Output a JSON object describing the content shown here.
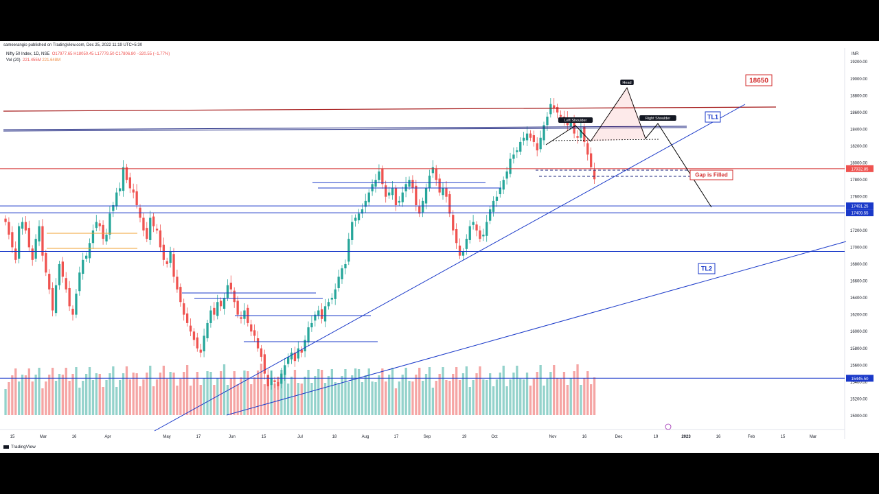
{
  "header": {
    "published": "sameerangio published on TradingView.com, Dec 25, 2022 11:19 UTC+5:30",
    "symbol": "Nifty 50 Index, 1D, NSE",
    "ohlc": {
      "o": "O17977.65",
      "h": "H18050.45",
      "l": "L17779.50",
      "c": "C17806.80",
      "chg": "−320.55 (−1.77%)"
    },
    "volume_label": "Vol (20)",
    "volume_value": "221.455M",
    "volume_ma": "221.648M",
    "currency": "INR"
  },
  "footer": {
    "brand": "TradingView"
  },
  "colors": {
    "up": "#26a69a",
    "down": "#ef5350",
    "up_vol": "#93d2cb",
    "down_vol": "#f5a5a4",
    "blue_line": "#1a39c9",
    "red_line": "#d32f2f",
    "dark_red_line": "#a31515"
  },
  "chart_data": {
    "type": "candlestick",
    "series": [
      {
        "name": "Nifty 50 Index, 1D, NSE"
      }
    ],
    "y_axis": {
      "ticks": [
        15000,
        15200,
        15400,
        15600,
        15800,
        16000,
        16200,
        16400,
        16600,
        16800,
        17000,
        17200,
        17400,
        17600,
        17800,
        18000,
        18200,
        18400,
        18600,
        18800,
        19000,
        19200
      ],
      "range": [
        14900,
        19250
      ]
    },
    "x_axis": {
      "ticks": [
        "15",
        "Mar",
        "16",
        "Apr",
        "May",
        "17",
        "Jun",
        "15",
        "Jul",
        "18",
        "Aug",
        "17",
        "Sep",
        "19",
        "Oct",
        "Nov",
        "16",
        "Dec",
        "19",
        "2023",
        "16",
        "Feb",
        "15",
        "Mar"
      ],
      "bold_tick": "2023"
    },
    "price_labels": [
      {
        "text": "17932.85",
        "value": 17932.85,
        "color": "#ef5350"
      },
      {
        "text": "17491.25",
        "value": 17491.25,
        "color": "#1a39c9"
      },
      {
        "text": "17409.55",
        "value": 17409.55,
        "color": "#1a39c9"
      },
      {
        "text": "15445.50",
        "value": 15445.5,
        "color": "#1a39c9"
      }
    ],
    "annotations": {
      "target": "18650",
      "tl1": "TL1",
      "tl2": "TL2",
      "gap": "Gap is Filled",
      "head": "Head",
      "left_shoulder": "Left Shoulder",
      "right_shoulder": "Right Shoulder"
    },
    "horizontal_levels": [
      17932.85,
      17491.25,
      17409.55,
      16950,
      15445.5
    ],
    "closes_approx": [
      17300,
      17150,
      17000,
      16850,
      17250,
      17300,
      17200,
      17000,
      16850,
      17100,
      17250,
      16900,
      16700,
      16500,
      16250,
      16550,
      16800,
      16650,
      16500,
      16300,
      16200,
      16450,
      16700,
      16850,
      16900,
      17050,
      17200,
      17300,
      17250,
      17100,
      17150,
      17400,
      17500,
      17650,
      17700,
      17950,
      17800,
      17700,
      17650,
      17500,
      17350,
      17200,
      17100,
      17350,
      17250,
      17200,
      17000,
      16850,
      16800,
      16950,
      16650,
      16500,
      16350,
      16200,
      16100,
      16000,
      15900,
      15800,
      15750,
      15950,
      16100,
      16250,
      16200,
      16350,
      16300,
      16400,
      16550,
      16500,
      16350,
      16200,
      16150,
      16250,
      16100,
      16000,
      15950,
      15800,
      15700,
      15500,
      15350,
      15450,
      15400,
      15350,
      15500,
      15600,
      15700,
      15750,
      15650,
      15800,
      15750,
      15900,
      16050,
      16100,
      16200,
      16250,
      16150,
      16300,
      16350,
      16400,
      16500,
      16650,
      16750,
      16800,
      17100,
      17300,
      17350,
      17400,
      17450,
      17550,
      17650,
      17750,
      17800,
      17900,
      17750,
      17600,
      17650,
      17700,
      17500,
      17550,
      17650,
      17750,
      17800,
      17700,
      17500,
      17400,
      17550,
      17700,
      17850,
      17950,
      17800,
      17650,
      17700,
      17600,
      17400,
      17200,
      17050,
      16900,
      16950,
      17100,
      17250,
      17300,
      17200,
      17100,
      17150,
      17300,
      17450,
      17550,
      17600,
      17700,
      17800,
      17900,
      18050,
      18100,
      18150,
      18250,
      18300,
      18350,
      18300,
      18250,
      18150,
      18300,
      18450,
      18550,
      18700,
      18650,
      18600,
      18550,
      18500,
      18450,
      18500,
      18350,
      18300,
      18400,
      18250,
      18100,
      17950,
      17807
    ]
  }
}
